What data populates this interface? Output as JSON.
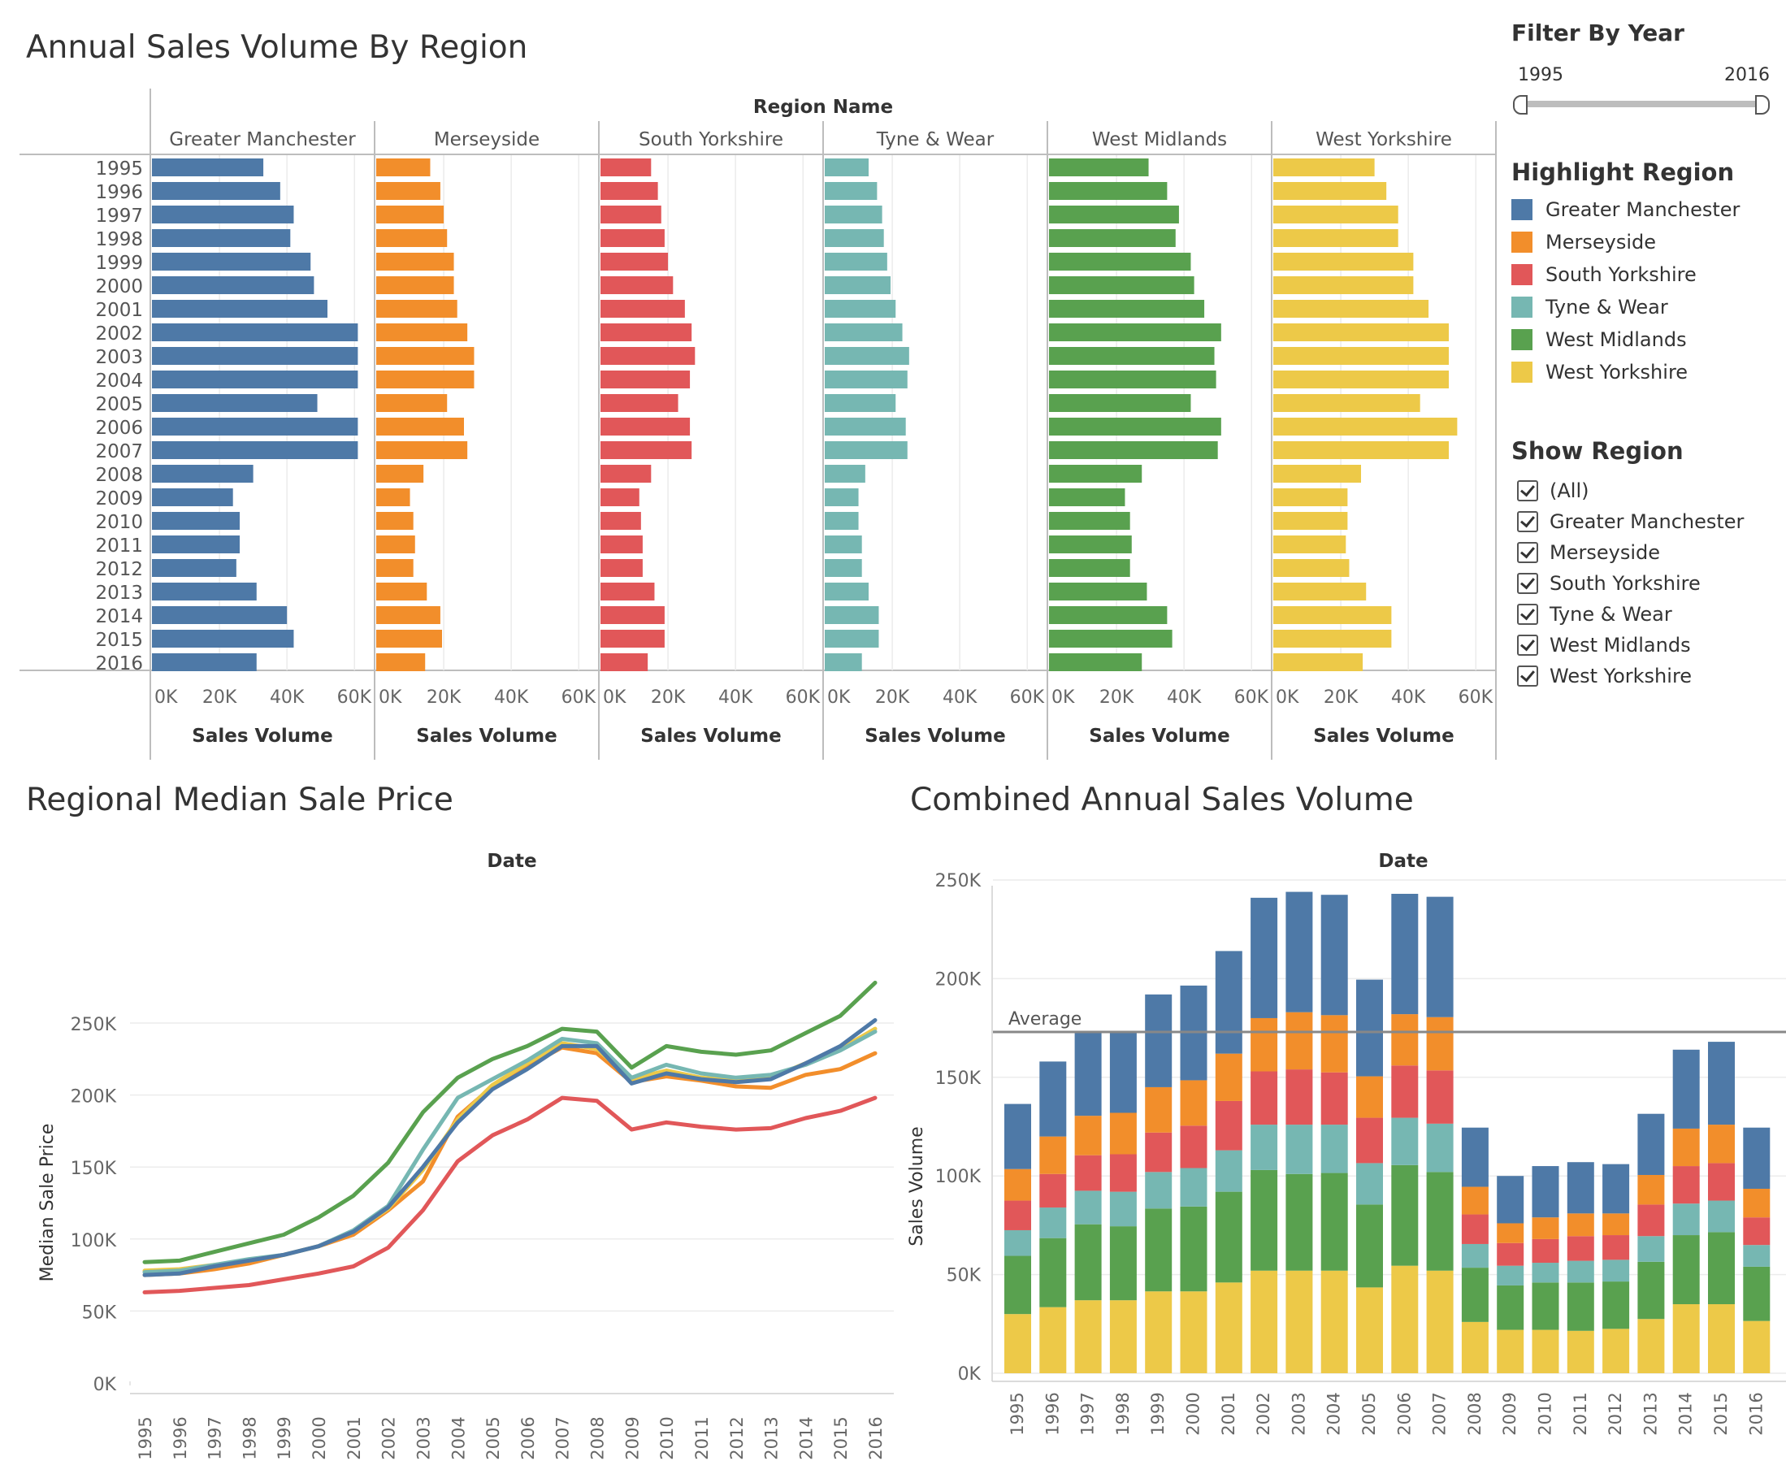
{
  "colors": {
    "Greater Manchester": "#4e79a7",
    "Merseyside": "#f28e2b",
    "South Yorkshire": "#e15759",
    "Tyne & Wear": "#76b7b2",
    "West Midlands": "#59a14f",
    "West Yorkshire": "#edc948"
  },
  "filter": {
    "title": "Filter By Year",
    "min_label": "1995",
    "max_label": "2016",
    "range": [
      1995,
      2016
    ]
  },
  "highlight": {
    "title": "Highlight Region",
    "items": [
      "Greater Manchester",
      "Merseyside",
      "South Yorkshire",
      "Tyne & Wear",
      "West Midlands",
      "West Yorkshire"
    ]
  },
  "show_region": {
    "title": "Show Region",
    "items": [
      "(All)",
      "Greater Manchester",
      "Merseyside",
      "South Yorkshire",
      "Tyne & Wear",
      "West Midlands",
      "West Yorkshire"
    ],
    "checked": [
      true,
      true,
      true,
      true,
      true,
      true,
      true
    ]
  },
  "chart_data": [
    {
      "type": "bar",
      "title": "Annual Sales Volume By Region",
      "column_header": "Region Name",
      "xlabel": "Sales Volume",
      "x_ticks": [
        "0K",
        "20K",
        "40K",
        "60K"
      ],
      "xlim": [
        0,
        65000
      ],
      "categories": [
        "1995",
        "1996",
        "1997",
        "1998",
        "1999",
        "2000",
        "2001",
        "2002",
        "2003",
        "2004",
        "2005",
        "2006",
        "2007",
        "2008",
        "2009",
        "2010",
        "2011",
        "2012",
        "2013",
        "2014",
        "2015",
        "2016"
      ],
      "series": [
        {
          "name": "Greater Manchester",
          "values": [
            33000,
            38000,
            42000,
            41000,
            47000,
            48000,
            52000,
            61000,
            61000,
            61000,
            49000,
            61000,
            61000,
            30000,
            24000,
            26000,
            26000,
            25000,
            31000,
            40000,
            42000,
            31000
          ]
        },
        {
          "name": "Merseyside",
          "values": [
            16000,
            19000,
            20000,
            21000,
            23000,
            23000,
            24000,
            27000,
            29000,
            29000,
            21000,
            26000,
            27000,
            14000,
            10000,
            11000,
            11500,
            11000,
            15000,
            19000,
            19500,
            14500
          ]
        },
        {
          "name": "South Yorkshire",
          "values": [
            15000,
            17000,
            18000,
            19000,
            20000,
            21500,
            25000,
            27000,
            28000,
            26500,
            23000,
            26500,
            27000,
            15000,
            11500,
            12000,
            12500,
            12500,
            16000,
            19000,
            19000,
            14000
          ]
        },
        {
          "name": "Tyne & Wear",
          "values": [
            13000,
            15500,
            17000,
            17500,
            18500,
            19500,
            21000,
            23000,
            25000,
            24500,
            21000,
            24000,
            24500,
            12000,
            10000,
            10000,
            11000,
            11000,
            13000,
            16000,
            16000,
            11000
          ]
        },
        {
          "name": "West Midlands",
          "values": [
            29500,
            35000,
            38500,
            37500,
            42000,
            43000,
            46000,
            51000,
            49000,
            49500,
            42000,
            51000,
            50000,
            27500,
            22500,
            24000,
            24500,
            24000,
            29000,
            35000,
            36500,
            27500
          ]
        },
        {
          "name": "West Yorkshire",
          "values": [
            30000,
            33500,
            37000,
            37000,
            41500,
            41500,
            46000,
            52000,
            52000,
            52000,
            43500,
            54500,
            52000,
            26000,
            22000,
            22000,
            21500,
            22500,
            27500,
            35000,
            35000,
            26500
          ]
        }
      ]
    },
    {
      "type": "line",
      "title": "Regional Median Sale Price",
      "column_header": "Date",
      "ylabel": "Median Sale Price",
      "y_ticks": [
        "0K",
        "50K",
        "100K",
        "150K",
        "200K",
        "250K"
      ],
      "ylim": [
        0,
        280000
      ],
      "x": [
        "1995",
        "1996",
        "1997",
        "1998",
        "1999",
        "2000",
        "2001",
        "2002",
        "2003",
        "2004",
        "2005",
        "2006",
        "2007",
        "2008",
        "2009",
        "2010",
        "2011",
        "2012",
        "2013",
        "2014",
        "2015",
        "2016"
      ],
      "series": [
        {
          "name": "Greater Manchester",
          "values": [
            75000,
            76000,
            81000,
            85000,
            89000,
            95000,
            105000,
            122000,
            150000,
            181000,
            204000,
            218000,
            234000,
            234000,
            208000,
            215000,
            211000,
            209000,
            211000,
            222000,
            234000,
            252000
          ]
        },
        {
          "name": "Merseyside",
          "values": [
            75000,
            76000,
            79000,
            83000,
            89000,
            95000,
            103000,
            120000,
            140000,
            185000,
            206000,
            220000,
            233000,
            229000,
            209000,
            213000,
            210000,
            206000,
            205000,
            214000,
            218000,
            229000
          ]
        },
        {
          "name": "South Yorkshire",
          "values": [
            63000,
            64000,
            66000,
            68000,
            72000,
            76000,
            81000,
            94000,
            120000,
            154000,
            172000,
            183000,
            198000,
            196000,
            176000,
            181000,
            178000,
            176000,
            177000,
            184000,
            189000,
            198000
          ]
        },
        {
          "name": "Tyne & Wear",
          "values": [
            77000,
            78000,
            82000,
            86000,
            89000,
            95000,
            106000,
            123000,
            162000,
            198000,
            211000,
            224000,
            239000,
            236000,
            212000,
            221000,
            215000,
            212000,
            214000,
            221000,
            231000,
            244000
          ]
        },
        {
          "name": "West Midlands",
          "values": [
            84000,
            85000,
            91000,
            97000,
            103000,
            115000,
            130000,
            153000,
            188000,
            212000,
            225000,
            234000,
            246000,
            244000,
            219000,
            234000,
            230000,
            228000,
            231000,
            243000,
            255000,
            278000
          ]
        },
        {
          "name": "West Yorkshire",
          "values": [
            78000,
            79000,
            82000,
            85000,
            89000,
            95000,
            105000,
            121000,
            148000,
            183000,
            207000,
            222000,
            236000,
            232000,
            211000,
            217000,
            212000,
            210000,
            212000,
            222000,
            232000,
            246000
          ]
        }
      ]
    },
    {
      "type": "bar",
      "stacked": true,
      "title": "Combined Annual Sales Volume",
      "column_header": "Date",
      "ylabel": "Sales Volume",
      "y_ticks": [
        "0K",
        "50K",
        "100K",
        "150K",
        "200K",
        "250K"
      ],
      "ylim": [
        0,
        250000
      ],
      "reference_line": {
        "label": "Average",
        "value": 173000
      },
      "categories": [
        "1995",
        "1996",
        "1997",
        "1998",
        "1999",
        "2000",
        "2001",
        "2002",
        "2003",
        "2004",
        "2005",
        "2006",
        "2007",
        "2008",
        "2009",
        "2010",
        "2011",
        "2012",
        "2013",
        "2014",
        "2015",
        "2016"
      ],
      "series": [
        {
          "name": "West Yorkshire",
          "values": [
            30000,
            33500,
            37000,
            37000,
            41500,
            41500,
            46000,
            52000,
            52000,
            52000,
            43500,
            54500,
            52000,
            26000,
            22000,
            22000,
            21500,
            22500,
            27500,
            35000,
            35000,
            26500
          ]
        },
        {
          "name": "West Midlands",
          "values": [
            29500,
            35000,
            38500,
            37500,
            42000,
            43000,
            46000,
            51000,
            49000,
            49500,
            42000,
            51000,
            50000,
            27500,
            22500,
            24000,
            24500,
            24000,
            29000,
            35000,
            36500,
            27500
          ]
        },
        {
          "name": "Tyne & Wear",
          "values": [
            13000,
            15500,
            17000,
            17500,
            18500,
            19500,
            21000,
            23000,
            25000,
            24500,
            21000,
            24000,
            24500,
            12000,
            10000,
            10000,
            11000,
            11000,
            13000,
            16000,
            16000,
            11000
          ]
        },
        {
          "name": "South Yorkshire",
          "values": [
            15000,
            17000,
            18000,
            19000,
            20000,
            21500,
            25000,
            27000,
            28000,
            26500,
            23000,
            26500,
            27000,
            15000,
            11500,
            12000,
            12500,
            12500,
            16000,
            19000,
            19000,
            14000
          ]
        },
        {
          "name": "Merseyside",
          "values": [
            16000,
            19000,
            20000,
            21000,
            23000,
            23000,
            24000,
            27000,
            29000,
            29000,
            21000,
            26000,
            27000,
            14000,
            10000,
            11000,
            11500,
            11000,
            15000,
            19000,
            19500,
            14500
          ]
        },
        {
          "name": "Greater Manchester",
          "values": [
            33000,
            38000,
            42000,
            41000,
            47000,
            48000,
            52000,
            61000,
            61000,
            61000,
            49000,
            61000,
            61000,
            30000,
            24000,
            26000,
            26000,
            25000,
            31000,
            40000,
            42000,
            31000
          ]
        }
      ]
    }
  ]
}
